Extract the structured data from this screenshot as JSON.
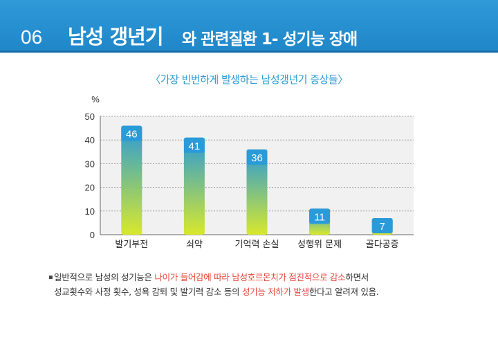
{
  "header": {
    "number": "06",
    "title_main": "남성 갱년기",
    "title_sub": "와 관련질환 1- 성기능 장애"
  },
  "chart_data": {
    "type": "bar",
    "title": "〈가장 빈번하게 발생하는 남성갱년기 증상들〉",
    "ylabel": "%",
    "ylim": [
      0,
      50
    ],
    "yticks": [
      "0",
      "10",
      "20",
      "30",
      "40",
      "50"
    ],
    "grid": true,
    "categories": [
      "발기부전",
      "쇠약",
      "기억력 손실",
      "성행위 문제",
      "골다공증"
    ],
    "values": [
      46,
      41,
      36,
      11,
      7
    ],
    "colors": {
      "bar_top": "#2a9bd8",
      "bar_bottom": "#d8e82c",
      "label_bg": "#2a9bd8"
    }
  },
  "note": {
    "bullet": "▪",
    "line1_a": "일반적으로 남성의 성기능은 ",
    "line1_hl1": "나이가 들어감에 따라 남성호르몬치가 점진적으로 감소",
    "line1_b": "하면서",
    "line2_a": "성교횟수와 사정 횟수, 성욕 감퇴 및 발기력 감소 등의 ",
    "line2_hl2": "성기능 저하가 발생",
    "line2_b": "한다고 알려져 있음."
  }
}
